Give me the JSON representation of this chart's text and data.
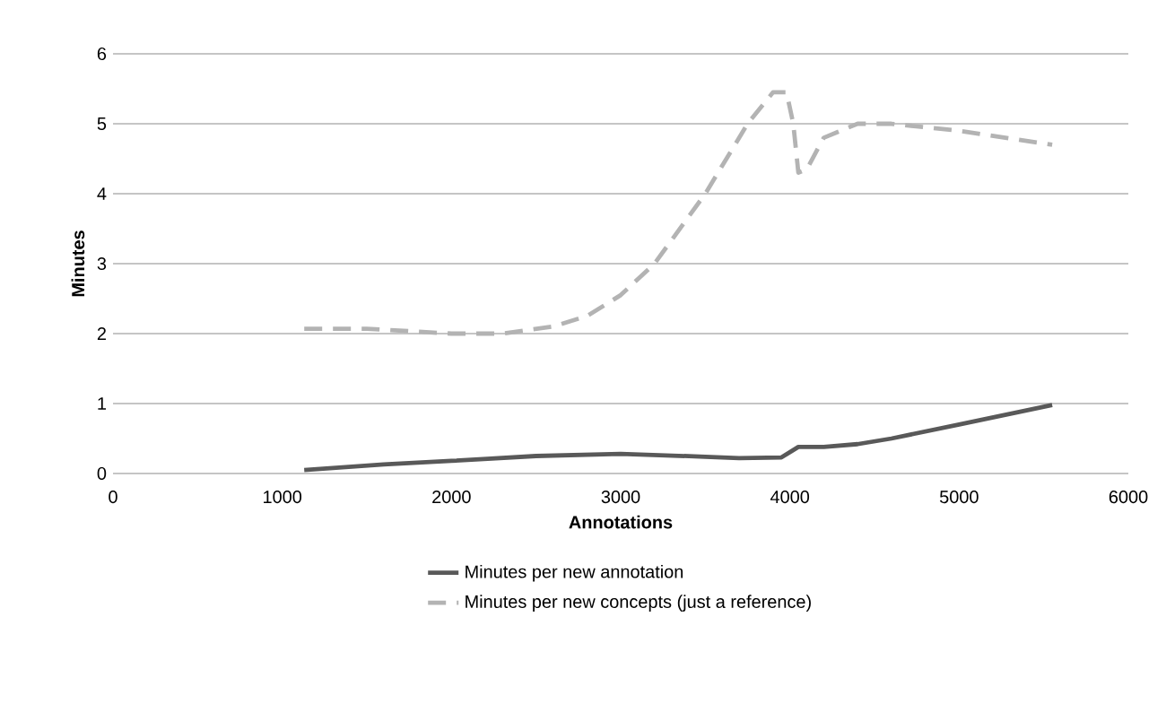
{
  "chart_data": {
    "type": "line",
    "xlabel": "Annotations",
    "ylabel": "Minutes",
    "xlim": [
      0,
      6000
    ],
    "ylim": [
      0,
      6
    ],
    "xticks": [
      0,
      1000,
      2000,
      3000,
      4000,
      5000,
      6000
    ],
    "yticks": [
      0,
      1,
      2,
      3,
      4,
      5,
      6
    ],
    "grid": "y",
    "legend": "bottom",
    "marker": "none",
    "series": [
      {
        "name": "Minutes per new annotation",
        "color": "#595959",
        "line_style": "solid",
        "x": [
          1130,
          1600,
          2000,
          2500,
          3000,
          3500,
          3700,
          3950,
          4050,
          4200,
          4400,
          4600,
          5000,
          5550
        ],
        "values": [
          0.05,
          0.13,
          0.18,
          0.25,
          0.28,
          0.24,
          0.22,
          0.23,
          0.38,
          0.38,
          0.42,
          0.5,
          0.7,
          0.98
        ]
      },
      {
        "name": "Minutes per new concepts (just a reference)",
        "color": "#b3b3b3",
        "line_style": "dashed",
        "x": [
          1130,
          1500,
          2000,
          2300,
          2600,
          2800,
          3000,
          3200,
          3500,
          3750,
          3900,
          3980,
          4020,
          4050,
          4100,
          4200,
          4400,
          4600,
          5000,
          5550
        ],
        "values": [
          2.07,
          2.07,
          2.0,
          2.0,
          2.1,
          2.25,
          2.55,
          3.0,
          4.0,
          5.0,
          5.45,
          5.45,
          5.0,
          4.3,
          4.35,
          4.8,
          5.0,
          5.0,
          4.9,
          4.7
        ]
      }
    ]
  }
}
